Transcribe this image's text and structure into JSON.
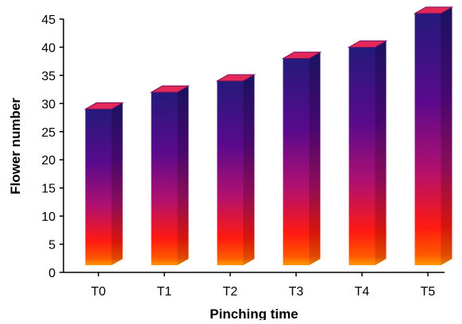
{
  "chart_data": {
    "type": "bar",
    "style": "3d-gradient-bars",
    "categories": [
      "T0",
      "T1",
      "T2",
      "T3",
      "T4",
      "T5"
    ],
    "values": [
      29,
      32,
      34,
      38,
      40,
      46
    ],
    "xlabel": "Pinching time",
    "ylabel": "Flower number",
    "ylim": [
      0,
      45
    ],
    "yticks": [
      0,
      5,
      10,
      15,
      20,
      25,
      30,
      35,
      40,
      45
    ],
    "grid": false,
    "legend": "none",
    "colors": {
      "bar_top_gradient": "#241a7a",
      "bar_mid_gradient": "#7a0a8a",
      "bar_lower_gradient": "#e0104a",
      "bar_bottom_gradient": "#ff2a00",
      "bar_base": "#ff8a00",
      "bar_cap": "#e3285a",
      "axis": "#000000"
    }
  }
}
